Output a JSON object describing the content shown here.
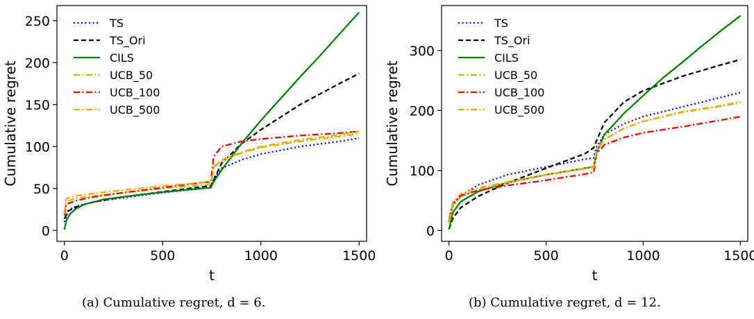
{
  "chart_data": [
    {
      "type": "line",
      "xlabel": "t",
      "ylabel": "Cumulative regret",
      "xlim": [
        -38,
        1538
      ],
      "ylim": [
        -13,
        268
      ],
      "xticks": [
        0,
        500,
        1000,
        1500
      ],
      "yticks": [
        0,
        50,
        100,
        150,
        200,
        250
      ],
      "legend_position": "top-left",
      "caption": "(a) Cumulative regret, d = 6.",
      "series": [
        {
          "name": "TS",
          "color": "#0000ff",
          "dash": "dotted",
          "points": [
            [
              0,
              10
            ],
            [
              20,
              24
            ],
            [
              60,
              29
            ],
            [
              150,
              34
            ],
            [
              300,
              39
            ],
            [
              500,
              45
            ],
            [
              700,
              50
            ],
            [
              745,
              51
            ],
            [
              760,
              62
            ],
            [
              800,
              74
            ],
            [
              900,
              84
            ],
            [
              1000,
              91
            ],
            [
              1200,
              100
            ],
            [
              1400,
              106
            ],
            [
              1500,
              110
            ]
          ]
        },
        {
          "name": "TS_Ori",
          "color": "#000000",
          "dash": "dashed",
          "points": [
            [
              0,
              14
            ],
            [
              20,
              23
            ],
            [
              60,
              28
            ],
            [
              150,
              34
            ],
            [
              300,
              40
            ],
            [
              500,
              46
            ],
            [
              700,
              52
            ],
            [
              745,
              53
            ],
            [
              760,
              60
            ],
            [
              800,
              80
            ],
            [
              900,
              103
            ],
            [
              1000,
              120
            ],
            [
              1200,
              150
            ],
            [
              1400,
              175
            ],
            [
              1500,
              187
            ]
          ]
        },
        {
          "name": "CILS",
          "color": "#008000",
          "dash": "solid",
          "points": [
            [
              0,
              1
            ],
            [
              10,
              12
            ],
            [
              30,
              20
            ],
            [
              60,
              26
            ],
            [
              100,
              31
            ],
            [
              200,
              37
            ],
            [
              400,
              43
            ],
            [
              600,
              48
            ],
            [
              745,
              51
            ],
            [
              760,
              58
            ],
            [
              800,
              72
            ],
            [
              900,
              103
            ],
            [
              1000,
              131
            ],
            [
              1100,
              157
            ],
            [
              1200,
              183
            ],
            [
              1300,
              208
            ],
            [
              1400,
              234
            ],
            [
              1500,
              260
            ]
          ]
        },
        {
          "name": "UCB_50",
          "color": "#bfbf00",
          "dash": "dashdot",
          "points": [
            [
              0,
              22
            ],
            [
              10,
              34
            ],
            [
              50,
              38
            ],
            [
              150,
              41
            ],
            [
              300,
              45
            ],
            [
              500,
              50
            ],
            [
              700,
              54
            ],
            [
              745,
              55
            ],
            [
              760,
              75
            ],
            [
              800,
              83
            ],
            [
              900,
              92
            ],
            [
              1000,
              99
            ],
            [
              1200,
              106
            ],
            [
              1400,
              112
            ],
            [
              1500,
              115
            ]
          ]
        },
        {
          "name": "UCB_100",
          "color": "#ff0000",
          "dash": "dashdot",
          "points": [
            [
              0,
              18
            ],
            [
              10,
              31
            ],
            [
              50,
              35
            ],
            [
              150,
              40
            ],
            [
              300,
              45
            ],
            [
              500,
              51
            ],
            [
              700,
              57
            ],
            [
              745,
              58
            ],
            [
              760,
              88
            ],
            [
              800,
              100
            ],
            [
              900,
              106
            ],
            [
              1000,
              109
            ],
            [
              1200,
              113
            ],
            [
              1400,
              116
            ],
            [
              1500,
              118
            ]
          ]
        },
        {
          "name": "UCB_500",
          "color": "#ffa500",
          "dash": "dashdot",
          "points": [
            [
              0,
              20
            ],
            [
              10,
              38
            ],
            [
              50,
              41
            ],
            [
              150,
              44
            ],
            [
              300,
              48
            ],
            [
              500,
              53
            ],
            [
              700,
              57
            ],
            [
              745,
              57
            ],
            [
              760,
              76
            ],
            [
              800,
              84
            ],
            [
              900,
              93
            ],
            [
              1000,
              100
            ],
            [
              1200,
              108
            ],
            [
              1400,
              114
            ],
            [
              1500,
              118
            ]
          ]
        }
      ]
    },
    {
      "type": "line",
      "xlabel": "t",
      "ylabel": "Cumulative regret",
      "xlim": [
        -38,
        1538
      ],
      "ylim": [
        -18,
        375
      ],
      "xticks": [
        0,
        500,
        1000,
        1500
      ],
      "yticks": [
        0,
        100,
        200,
        300
      ],
      "legend_position": "top-left",
      "caption": "(b) Cumulative regret, d = 12.",
      "series": [
        {
          "name": "TS",
          "color": "#0000ff",
          "dash": "dotted",
          "points": [
            [
              0,
              15
            ],
            [
              20,
              42
            ],
            [
              60,
              58
            ],
            [
              150,
              76
            ],
            [
              300,
              93
            ],
            [
              500,
              106
            ],
            [
              700,
              119
            ],
            [
              745,
              121
            ],
            [
              760,
              140
            ],
            [
              800,
              160
            ],
            [
              900,
              178
            ],
            [
              1000,
              190
            ],
            [
              1200,
              206
            ],
            [
              1400,
              222
            ],
            [
              1500,
              230
            ]
          ]
        },
        {
          "name": "TS_Ori",
          "color": "#000000",
          "dash": "dashed",
          "points": [
            [
              0,
              2
            ],
            [
              20,
              20
            ],
            [
              60,
              38
            ],
            [
              150,
              57
            ],
            [
              300,
              79
            ],
            [
              500,
              104
            ],
            [
              700,
              128
            ],
            [
              745,
              138
            ],
            [
              760,
              150
            ],
            [
              800,
              180
            ],
            [
              900,
              214
            ],
            [
              1000,
              233
            ],
            [
              1200,
              257
            ],
            [
              1400,
              276
            ],
            [
              1500,
              285
            ]
          ]
        },
        {
          "name": "CILS",
          "color": "#008000",
          "dash": "solid",
          "points": [
            [
              0,
              2
            ],
            [
              20,
              30
            ],
            [
              60,
              48
            ],
            [
              150,
              65
            ],
            [
              300,
              80
            ],
            [
              500,
              93
            ],
            [
              700,
              104
            ],
            [
              745,
              106
            ],
            [
              760,
              130
            ],
            [
              800,
              160
            ],
            [
              900,
              195
            ],
            [
              1000,
              225
            ],
            [
              1100,
              254
            ],
            [
              1200,
              280
            ],
            [
              1300,
              307
            ],
            [
              1400,
              333
            ],
            [
              1500,
              358
            ]
          ]
        },
        {
          "name": "UCB_50",
          "color": "#bfbf00",
          "dash": "dashdot",
          "points": [
            [
              0,
              12
            ],
            [
              20,
              40
            ],
            [
              60,
              56
            ],
            [
              150,
              68
            ],
            [
              300,
              80
            ],
            [
              500,
              93
            ],
            [
              700,
              104
            ],
            [
              745,
              107
            ],
            [
              760,
              135
            ],
            [
              800,
              152
            ],
            [
              900,
              170
            ],
            [
              1000,
              182
            ],
            [
              1200,
              197
            ],
            [
              1400,
              207
            ],
            [
              1500,
              213
            ]
          ]
        },
        {
          "name": "UCB_100",
          "color": "#ff0000",
          "dash": "dashdot",
          "points": [
            [
              0,
              20
            ],
            [
              20,
              45
            ],
            [
              60,
              58
            ],
            [
              150,
              67
            ],
            [
              300,
              75
            ],
            [
              500,
              84
            ],
            [
              700,
              94
            ],
            [
              745,
              97
            ],
            [
              760,
              128
            ],
            [
              800,
              143
            ],
            [
              900,
              155
            ],
            [
              1000,
              163
            ],
            [
              1200,
              173
            ],
            [
              1400,
              184
            ],
            [
              1500,
              190
            ]
          ]
        },
        {
          "name": "UCB_500",
          "color": "#ffa500",
          "dash": "dashdot",
          "points": [
            [
              0,
              18
            ],
            [
              20,
              47
            ],
            [
              60,
              61
            ],
            [
              150,
              71
            ],
            [
              300,
              81
            ],
            [
              500,
              93
            ],
            [
              700,
              103
            ],
            [
              745,
              105
            ],
            [
              760,
              132
            ],
            [
              800,
              152
            ],
            [
              900,
              170
            ],
            [
              1000,
              182
            ],
            [
              1200,
              198
            ],
            [
              1400,
              208
            ],
            [
              1500,
              215
            ]
          ]
        }
      ]
    }
  ]
}
